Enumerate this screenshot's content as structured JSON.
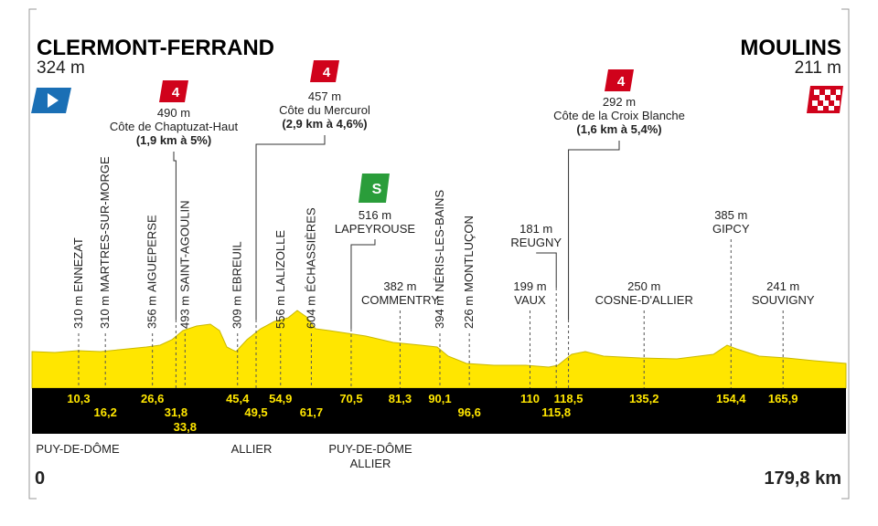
{
  "start": {
    "name": "CLERMONT-FERRAND",
    "altitude": "324 m",
    "km": {
      "value": 0,
      "label": "0"
    }
  },
  "finish": {
    "name": "MOULINS",
    "altitude": "211 m",
    "km": {
      "value": 179.8,
      "label": "179,8 km"
    }
  },
  "regions": [
    "PUY-DE-DÔME",
    "ALLIER",
    "PUY-DE-DÔME",
    "ALLIER"
  ],
  "waypoints": [
    {
      "km": {
        "value": 10.3,
        "label": "10,3"
      },
      "altitude": "310 m",
      "name": "ENNEZAT"
    },
    {
      "km": {
        "value": 16.2,
        "label": "16,2"
      },
      "altitude": "310 m",
      "name": "MARTRES-SUR-MORGE"
    },
    {
      "km": {
        "value": 26.6,
        "label": "26,6"
      },
      "altitude": "356 m",
      "name": "AIGUEPERSE"
    },
    {
      "km": {
        "value": 31.8,
        "label": "31,8"
      },
      "altitude": "490 m",
      "name": "Côte de Chaptuzat-Haut",
      "category": "4",
      "detail": "(1,9 km à 5%)"
    },
    {
      "km": {
        "value": 33.8,
        "label": "33,8"
      },
      "altitude": "493 m",
      "name": "SAINT-AGOULIN"
    },
    {
      "km": {
        "value": 45.4,
        "label": "45,4"
      },
      "altitude": "309 m",
      "name": "EBREUIL"
    },
    {
      "km": {
        "value": 49.5,
        "label": "49,5"
      },
      "altitude": "457 m",
      "name": "Côte du Mercurol",
      "category": "4",
      "detail": "(2,9 km à 4,6%)"
    },
    {
      "km": {
        "value": 54.9,
        "label": "54,9"
      },
      "altitude": "556 m",
      "name": "LALIZOLLE"
    },
    {
      "km": {
        "value": 61.7,
        "label": "61,7"
      },
      "altitude": "604 m",
      "name": "ÉCHASSIÈRES"
    },
    {
      "km": {
        "value": 70.5,
        "label": "70,5"
      },
      "altitude": "516 m",
      "name": "LAPEYROUSE",
      "sprint": "S"
    },
    {
      "km": {
        "value": 81.3,
        "label": "81,3"
      },
      "altitude": "382 m",
      "name": "COMMENTRY"
    },
    {
      "km": {
        "value": 90.1,
        "label": "90,1"
      },
      "altitude": "394 m",
      "name": "NÉRIS-LES-BAINS"
    },
    {
      "km": {
        "value": 96.6,
        "label": "96,6"
      },
      "altitude": "226 m",
      "name": "MONTLUÇON"
    },
    {
      "km": {
        "value": 110,
        "label": "110"
      },
      "altitude": "199 m",
      "name": "VAUX"
    },
    {
      "km": {
        "value": 115.8,
        "label": "115,8"
      },
      "altitude": "181 m",
      "name": "REUGNY"
    },
    {
      "km": {
        "value": 118.5,
        "label": "118,5"
      },
      "altitude": "292 m",
      "name": "Côte de la Croix Blanche",
      "category": "4",
      "detail": "(1,6 km à 5,4%)"
    },
    {
      "km": {
        "value": 135.2,
        "label": "135,2"
      },
      "altitude": "250 m",
      "name": "COSNE-D'ALLIER"
    },
    {
      "km": {
        "value": 154.4,
        "label": "154,4"
      },
      "altitude": "385 m",
      "name": "GIPCY"
    },
    {
      "km": {
        "value": 165.9,
        "label": "165,9"
      },
      "altitude": "241 m",
      "name": "SOUVIGNY"
    }
  ]
}
